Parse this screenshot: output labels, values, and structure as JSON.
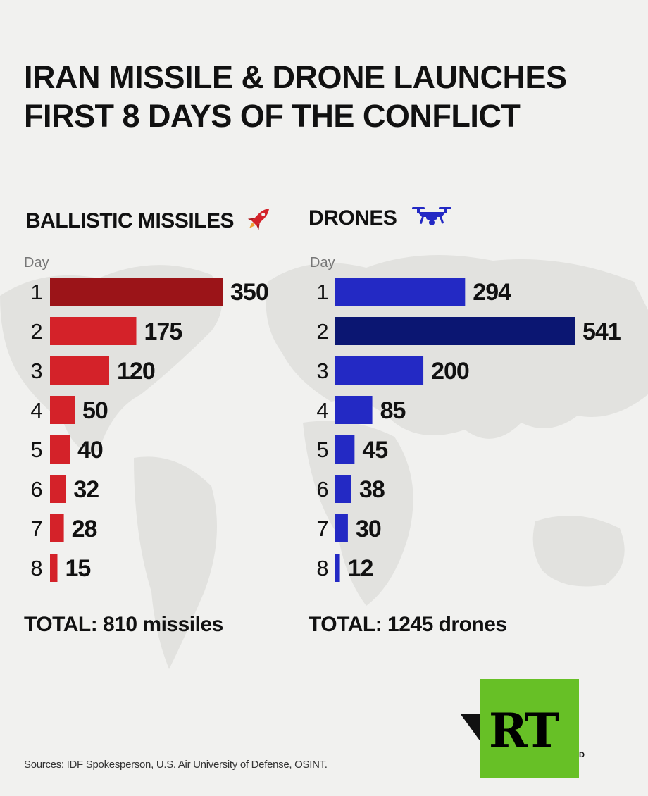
{
  "title_line1": "IRAN MISSILE & DRONE LAUNCHES",
  "title_line2": "FIRST 8 DAYS OF THE CONFLICT",
  "colors": {
    "missile_bar": "#d42229",
    "missile_bar_max": "#9b1418",
    "drone_bar": "#2329c4",
    "drone_bar_max": "#0b1672",
    "rt_green": "#67c026"
  },
  "icons": {
    "missiles": "rocket-icon",
    "drones": "drone-icon"
  },
  "chart_data": [
    {
      "type": "bar",
      "orientation": "horizontal",
      "title": "BALLISTIC MISSILES",
      "xlabel": "",
      "ylabel": "Day",
      "categories": [
        "1",
        "2",
        "3",
        "4",
        "5",
        "6",
        "7",
        "8"
      ],
      "values": [
        350,
        175,
        120,
        50,
        40,
        32,
        28,
        15
      ],
      "total_label": "TOTAL: 810 missiles"
    },
    {
      "type": "bar",
      "orientation": "horizontal",
      "title": "DRONES",
      "xlabel": "",
      "ylabel": "Day",
      "categories": [
        "1",
        "2",
        "3",
        "4",
        "5",
        "6",
        "7",
        "8"
      ],
      "values": [
        294,
        541,
        200,
        85,
        45,
        38,
        30,
        12
      ],
      "total_label": "TOTAL: 1245 drones"
    }
  ],
  "sources": "Sources: IDF Spokesperson, U.S. Air University of Defense, OSINT.",
  "logo_text": "RT",
  "logo_fragment": "D"
}
